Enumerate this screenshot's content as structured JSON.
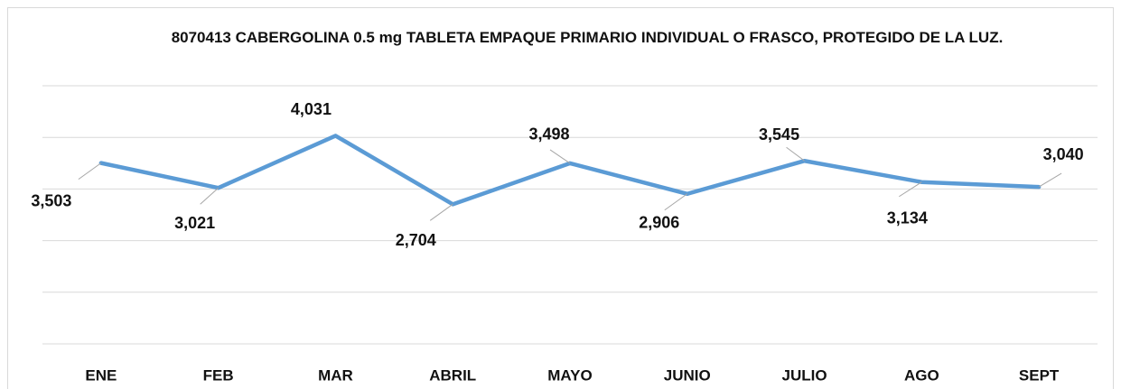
{
  "chart_data": {
    "type": "line",
    "title": "8070413 CABERGOLINA 0.5 mg TABLETA EMPAQUE PRIMARIO INDIVIDUAL O FRASCO, PROTEGIDO DE LA LUZ.",
    "categories": [
      "ENE",
      "FEB",
      "MAR",
      "ABRIL",
      "MAYO",
      "JUNIO",
      "JULIO",
      "AGO",
      "SEPT"
    ],
    "values": [
      3503,
      3021,
      4031,
      2704,
      3498,
      2906,
      3545,
      3134,
      3040
    ],
    "value_labels": [
      "3,503",
      "3,021",
      "4,031",
      "2,704",
      "3,498",
      "2,906",
      "3,545",
      "3,134",
      "3,040"
    ],
    "color": "#5b9bd5",
    "ylim": [
      0,
      5000
    ],
    "yticks": [
      0,
      1000,
      2000,
      3000,
      4000,
      5000
    ],
    "grid": true
  }
}
